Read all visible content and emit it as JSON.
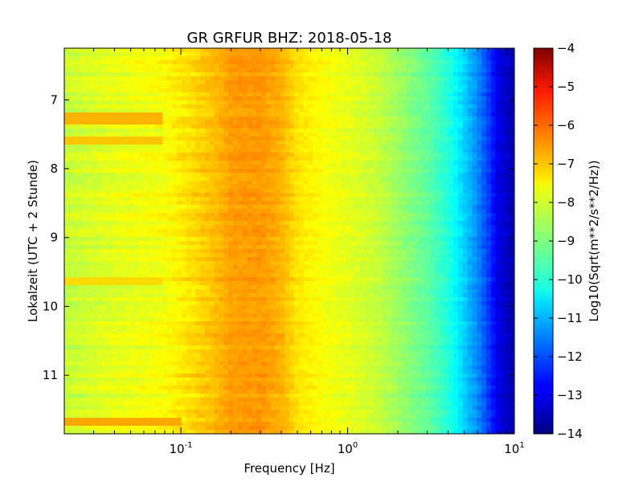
{
  "chart_data": {
    "type": "heatmap",
    "title": "GR GRFUR BHZ: 2018-05-18",
    "xlabel": "Frequency [Hz]",
    "ylabel": "Lokalzeit (UTC + 2 Stunde)",
    "x_scale": "log",
    "xlim": [
      0.02,
      10
    ],
    "x_ticks": [
      {
        "value": 0.1,
        "base": "10",
        "exp": "-1"
      },
      {
        "value": 1,
        "base": "10",
        "exp": "0"
      },
      {
        "value": 10,
        "base": "10",
        "exp": "1"
      }
    ],
    "ylim": [
      6.25,
      11.85
    ],
    "y_inverted": true,
    "y_ticks": [
      7,
      8,
      9,
      10,
      11
    ],
    "colorbar": {
      "label": "Log10(Sqrt(m**2/s**2/Hz))",
      "colormap": "jet",
      "range": [
        -14,
        -4
      ],
      "ticks": [
        -4,
        -5,
        -6,
        -7,
        -8,
        -9,
        -10,
        -11,
        -12,
        -13,
        -14
      ]
    },
    "spectrum_profile": [
      {
        "freq_hz": 0.02,
        "value": -8.3
      },
      {
        "freq_hz": 0.04,
        "value": -8.0
      },
      {
        "freq_hz": 0.06,
        "value": -7.9
      },
      {
        "freq_hz": 0.08,
        "value": -7.8
      },
      {
        "freq_hz": 0.12,
        "value": -7.4
      },
      {
        "freq_hz": 0.16,
        "value": -7.1
      },
      {
        "freq_hz": 0.2,
        "value": -6.8
      },
      {
        "freq_hz": 0.3,
        "value": -6.75
      },
      {
        "freq_hz": 0.4,
        "value": -7.0
      },
      {
        "freq_hz": 0.5,
        "value": -7.5
      },
      {
        "freq_hz": 0.7,
        "value": -7.8
      },
      {
        "freq_hz": 1.0,
        "value": -8.0
      },
      {
        "freq_hz": 1.5,
        "value": -8.3
      },
      {
        "freq_hz": 2.0,
        "value": -8.7
      },
      {
        "freq_hz": 3.0,
        "value": -9.3
      },
      {
        "freq_hz": 4.0,
        "value": -9.9
      },
      {
        "freq_hz": 5.0,
        "value": -10.7
      },
      {
        "freq_hz": 6.0,
        "value": -11.4
      },
      {
        "freq_hz": 7.0,
        "value": -12.2
      },
      {
        "freq_hz": 8.0,
        "value": -13.0
      },
      {
        "freq_hz": 10.0,
        "value": -13.6
      }
    ],
    "low_freq_events": [
      {
        "start_hour": 7.2,
        "end_hour": 7.35,
        "freq_max_hz": 0.08,
        "value": -7.0
      },
      {
        "start_hour": 7.55,
        "end_hour": 7.65,
        "freq_max_hz": 0.08,
        "value": -7.2
      },
      {
        "start_hour": 9.6,
        "end_hour": 9.7,
        "freq_max_hz": 0.08,
        "value": -7.4
      },
      {
        "start_hour": 11.6,
        "end_hour": 11.75,
        "freq_max_hz": 0.1,
        "value": -6.9
      }
    ],
    "grid": false
  }
}
